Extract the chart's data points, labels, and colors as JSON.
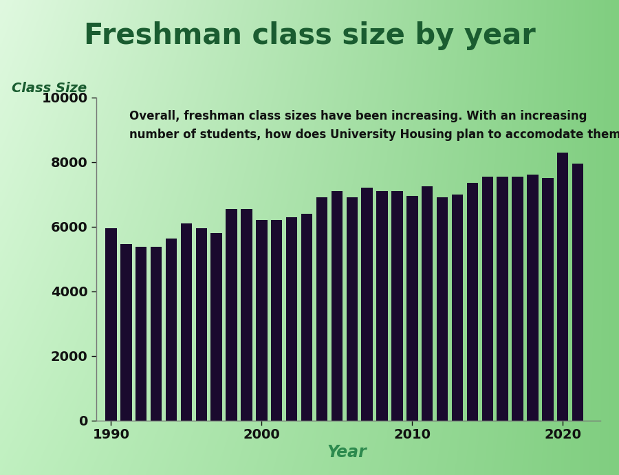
{
  "title": "Freshman class size by year",
  "xlabel": "Year",
  "ylabel": "Class Size",
  "annotation_line1": "Overall, freshman class sizes have been increasing. With an increasing",
  "annotation_line2": "number of students, how does University Housing plan to accomodate them?",
  "years": [
    1990,
    1991,
    1992,
    1993,
    1994,
    1995,
    1996,
    1997,
    1998,
    1999,
    2000,
    2001,
    2002,
    2003,
    2004,
    2005,
    2006,
    2007,
    2008,
    2009,
    2010,
    2011,
    2012,
    2013,
    2014,
    2015,
    2016,
    2017,
    2018,
    2019,
    2020,
    2021
  ],
  "values": [
    5950,
    5450,
    5380,
    5380,
    5620,
    6100,
    5950,
    5800,
    6550,
    6550,
    6200,
    6200,
    6300,
    6400,
    6900,
    7100,
    6900,
    7200,
    7100,
    7100,
    6950,
    7250,
    6900,
    7000,
    7350,
    7550,
    7550,
    7550,
    7600,
    7500,
    8300,
    7950
  ],
  "bar_color": "#1a0a2e",
  "title_color": "#1a5c30",
  "ylabel_color": "#1a5c30",
  "xlabel_color": "#2d8a4e",
  "tick_color": "#111111",
  "annotation_color": "#111111",
  "bg_topleft": [
    0.878,
    0.976,
    0.878
  ],
  "bg_topright": [
    0.502,
    0.808,
    0.502
  ],
  "bg_bottomleft": [
    0.753,
    0.941,
    0.753
  ],
  "bg_bottomright": [
    0.502,
    0.808,
    0.502
  ],
  "ylim": [
    0,
    10000
  ],
  "yticks": [
    0,
    2000,
    4000,
    6000,
    8000,
    10000
  ],
  "xticks": [
    1990,
    2000,
    2010,
    2020
  ],
  "title_fontsize": 30,
  "ylabel_fontsize": 14,
  "xlabel_fontsize": 17,
  "annotation_fontsize": 12,
  "tick_fontsize": 14,
  "bar_width": 0.75
}
